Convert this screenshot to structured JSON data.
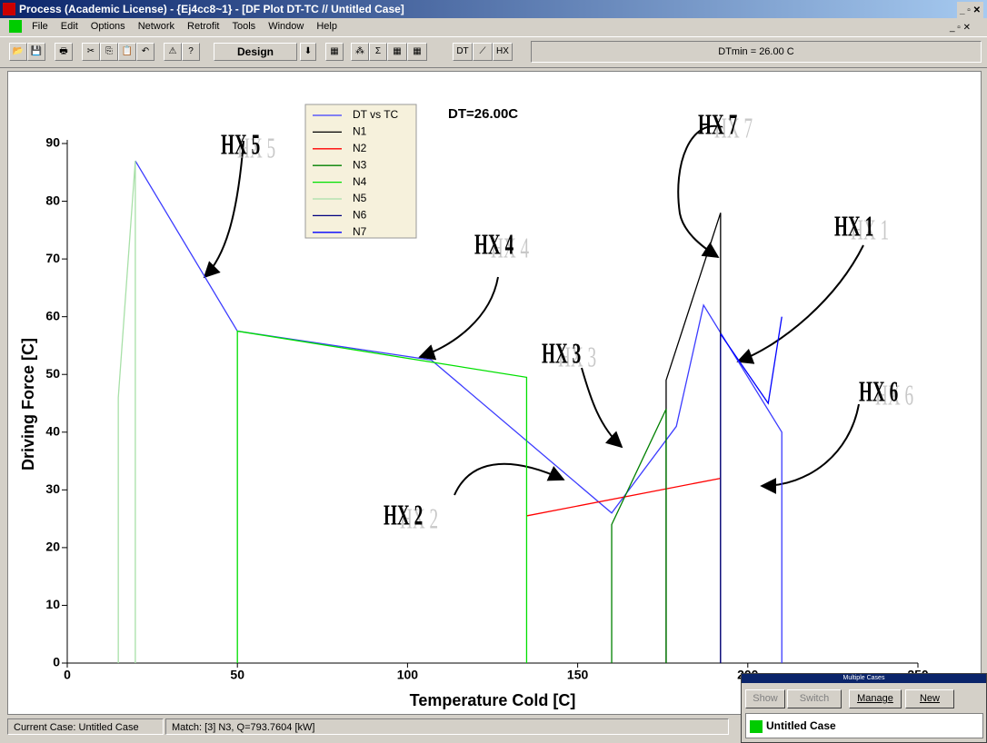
{
  "window": {
    "title": "Process (Academic License) - {Ej4cc8~1} - [DF Plot DT-TC // Untitled Case]",
    "menu": [
      "File",
      "Edit",
      "Options",
      "Network",
      "Retrofit",
      "Tools",
      "Window",
      "Help"
    ],
    "toolbar": {
      "design": "Design",
      "dt": "DT",
      "hx": "HX",
      "dtmin": "DTmin = 26.00 C"
    },
    "status": [
      "Current Case: Untitled Case",
      "Match: [3] N3, Q=793.7604 [kW]"
    ]
  },
  "cases_window": {
    "title": "Multiple Cases",
    "buttons": [
      "Show",
      "Switch",
      "Manage",
      "New"
    ],
    "case": "Untitled Case"
  },
  "chart_data": {
    "type": "line",
    "x_label": "Temperature Cold [C]",
    "y_label": "Driving Force [C]",
    "dt_label": "DT=26.00C",
    "annotations": [
      "HX 5",
      "HX 4",
      "HX 3",
      "HX 2",
      "HX 7",
      "HX 1",
      "HX 6"
    ],
    "xlim": [
      0,
      250
    ],
    "ylim": [
      0,
      90
    ],
    "xticks": [
      0,
      50,
      100,
      150,
      200,
      250
    ],
    "yticks": [
      0,
      10,
      20,
      30,
      40,
      50,
      60,
      70,
      80,
      90
    ],
    "series": [
      {
        "name": "DT vs TC",
        "color": "#3c3cff",
        "x": [
          20,
          50,
          107,
          160,
          179,
          187,
          210,
          210
        ],
        "values": [
          87,
          57.5,
          52.5,
          26,
          41,
          62,
          40,
          0
        ]
      },
      {
        "name": "N1",
        "color": "#000000",
        "x": [
          176,
          176,
          192,
          192
        ],
        "values": [
          0,
          49,
          78,
          0
        ]
      },
      {
        "name": "N2",
        "color": "#ff0000",
        "x": [
          135,
          192
        ],
        "values": [
          25.5,
          32
        ]
      },
      {
        "name": "N3",
        "color": "#008000",
        "x": [
          160,
          160,
          176,
          176
        ],
        "values": [
          0,
          24,
          44,
          0
        ]
      },
      {
        "name": "N4",
        "color": "#00e000",
        "x": [
          50,
          50,
          135,
          135
        ],
        "values": [
          0,
          57.5,
          49.5,
          0
        ]
      },
      {
        "name": "N5",
        "color": "#a8e0a8",
        "x": [
          15,
          15,
          20,
          20
        ],
        "values": [
          0,
          46,
          87,
          0
        ]
      },
      {
        "name": "N6",
        "color": "#000080",
        "x": [
          192,
          192
        ],
        "values": [
          0,
          57
        ]
      },
      {
        "name": "N7",
        "color": "#0000ff",
        "x": [
          192,
          206,
          210
        ],
        "values": [
          57,
          45,
          60
        ]
      }
    ]
  }
}
